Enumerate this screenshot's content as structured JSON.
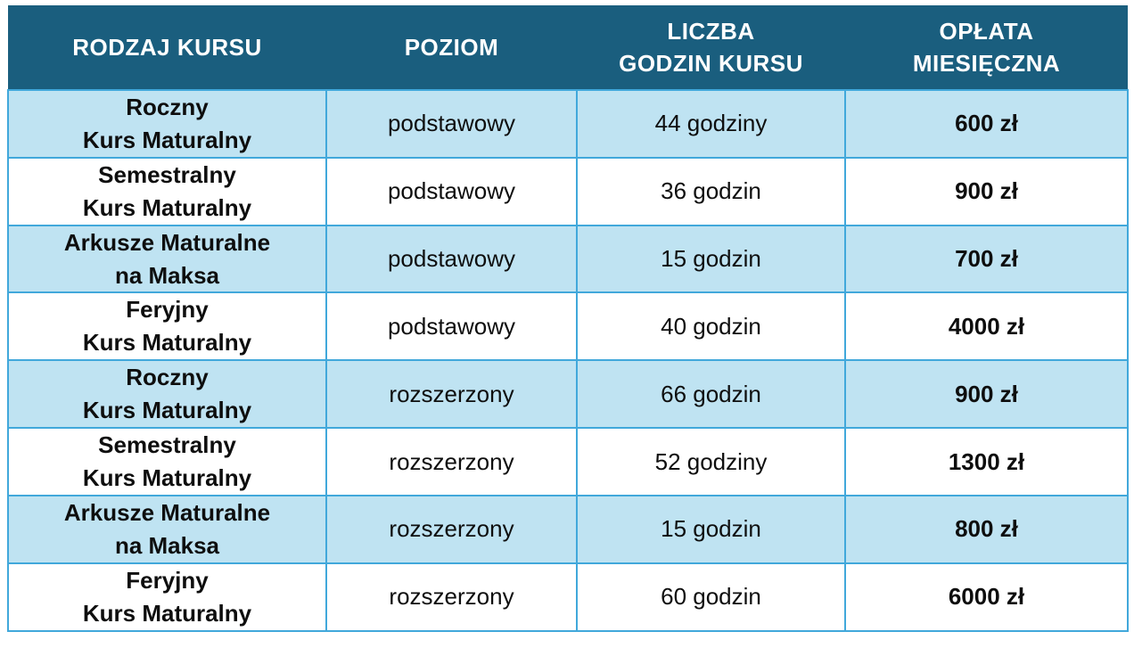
{
  "colors": {
    "header_bg": "#1a5e7e",
    "header_text": "#ffffff",
    "row_alt_bg": "#bfe3f2",
    "row_bg": "#ffffff",
    "border": "#41a8db",
    "text": "#0e0e0e"
  },
  "table": {
    "columns": [
      {
        "key": "course",
        "label": "RODZAJ KURSU"
      },
      {
        "key": "level",
        "label": "POZIOM"
      },
      {
        "key": "hours",
        "label": "LICZBA\nGODZIN KURSU"
      },
      {
        "key": "price",
        "label": "OPŁATA\nMIESIĘCZNA"
      }
    ],
    "rows": [
      {
        "course": "Roczny\nKurs Maturalny",
        "level": "podstawowy",
        "hours": "44 godziny",
        "price": "600 zł"
      },
      {
        "course": "Semestralny\nKurs Maturalny",
        "level": "podstawowy",
        "hours": "36 godzin",
        "price": "900 zł"
      },
      {
        "course": "Arkusze Maturalne\nna Maksa",
        "level": "podstawowy",
        "hours": "15 godzin",
        "price": "700 zł"
      },
      {
        "course": "Feryjny\nKurs Maturalny",
        "level": "podstawowy",
        "hours": "40 godzin",
        "price": "4000 zł"
      },
      {
        "course": "Roczny\nKurs Maturalny",
        "level": "rozszerzony",
        "hours": "66 godzin",
        "price": "900 zł"
      },
      {
        "course": "Semestralny\nKurs Maturalny",
        "level": "rozszerzony",
        "hours": "52 godziny",
        "price": "1300 zł"
      },
      {
        "course": "Arkusze Maturalne\nna Maksa",
        "level": "rozszerzony",
        "hours": "15 godzin",
        "price": "800 zł"
      },
      {
        "course": "Feryjny\nKurs Maturalny",
        "level": "rozszerzony",
        "hours": "60 godzin",
        "price": "6000 zł"
      }
    ]
  }
}
